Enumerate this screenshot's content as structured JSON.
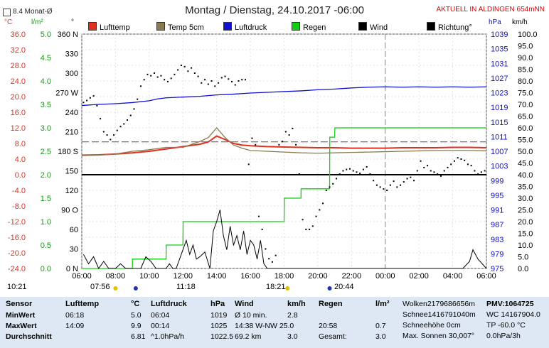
{
  "header": {
    "title": "Montag / Dienstag, 24.10.2017  -06:00",
    "live_label": "AKTUELL IN ALDINGEN 654mNN",
    "average_label": "8.4 Monat-Ø"
  },
  "units": {
    "temp": "°C",
    "rain": "l/m²",
    "dir": "°",
    "pressure": "hPa",
    "wind": "km/h"
  },
  "legend": [
    {
      "label": "Lufttemp",
      "color": "#e03020"
    },
    {
      "label": "Temp 5cm",
      "color": "#8a7a50"
    },
    {
      "label": "Luftdruck",
      "color": "#1010d0"
    },
    {
      "label": "Regen",
      "color": "#10d010"
    },
    {
      "label": "Wind",
      "color": "#000000"
    },
    {
      "label": "Richtung°",
      "color": "#000000"
    }
  ],
  "chart_data": {
    "type": "line",
    "x_ticks": [
      "06:00",
      "08:00",
      "10:00",
      "12:00",
      "14:00",
      "16:00",
      "18:00",
      "20:00",
      "22:00",
      "00:00",
      "02:00",
      "04:00",
      "06:00"
    ],
    "axes": {
      "temp": {
        "range": [
          -24,
          36
        ],
        "ticks": [
          "36.0",
          "32.0",
          "28.0",
          "24.0",
          "20.0",
          "16.0",
          "12.0",
          "8.0",
          "4.0",
          "0.0",
          "-4.0",
          "-8.0",
          "-12.0",
          "-16.0",
          "-20.0",
          "-24.0"
        ]
      },
      "rain": {
        "range": [
          0,
          5
        ],
        "ticks": [
          "5.0",
          "4.5",
          "4.0",
          "3.5",
          "3.0",
          "2.5",
          "2.0",
          "1.5",
          "1.0",
          "0.5",
          "0.0"
        ]
      },
      "direction": {
        "range": [
          0,
          360
        ],
        "ticks": [
          "360 N",
          "330",
          "300",
          "270 W",
          "240",
          "210",
          "180 S",
          "150",
          "120",
          "90 O",
          "60",
          "30",
          "0 N"
        ]
      },
      "pressure": {
        "range": [
          975,
          1039
        ],
        "ticks": [
          "1039",
          "1035",
          "1031",
          "1027",
          "1023",
          "1019",
          "1015",
          "1011",
          "1007",
          "1003",
          "999",
          "995",
          "991",
          "987",
          "983",
          "979",
          "975"
        ]
      },
      "wind": {
        "range": [
          0,
          100
        ],
        "ticks": [
          "100.0",
          "95.0",
          "90.0",
          "85.0",
          "80.0",
          "75.0",
          "70.0",
          "65.0",
          "60.0",
          "55.0",
          "50.0",
          "45.0",
          "40.0",
          "35.0",
          "30.0",
          "25.0",
          "20.0",
          "15.0",
          "10.0",
          "5.0",
          "0.0"
        ]
      }
    },
    "monthly_average": 8.4,
    "series": [
      {
        "name": "Lufttemp",
        "axis": "temp",
        "color": "#e03020",
        "x": [
          0,
          1,
          2,
          3,
          4,
          5,
          6,
          7,
          7.5,
          8,
          8.5,
          9,
          9.5,
          10,
          11,
          12,
          13,
          14,
          15,
          16,
          17,
          18,
          19,
          20,
          21,
          22,
          23,
          24
        ],
        "y": [
          5.0,
          5.1,
          5.3,
          5.6,
          6.0,
          6.6,
          7.2,
          7.8,
          8.4,
          9.9,
          9.0,
          8.0,
          7.6,
          7.4,
          7.2,
          7.1,
          7.0,
          6.9,
          6.9,
          6.8,
          6.8,
          6.8,
          6.9,
          6.9,
          6.9,
          7.0,
          7.0,
          6.9
        ]
      },
      {
        "name": "Temp 5cm",
        "axis": "temp",
        "color": "#8a7a50",
        "x": [
          0,
          1,
          2,
          3,
          4,
          5,
          6,
          7,
          7.5,
          8,
          8.5,
          9,
          9.5,
          10,
          11,
          12,
          13,
          14,
          15,
          16,
          17,
          18,
          19,
          20,
          21,
          22,
          23,
          24
        ],
        "y": [
          4.9,
          5.0,
          5.3,
          6.0,
          6.4,
          7.0,
          7.0,
          8.5,
          9.5,
          12.0,
          9.5,
          7.6,
          6.8,
          6.2,
          6.0,
          5.8,
          5.6,
          5.5,
          5.6,
          5.7,
          5.8,
          5.9,
          6.0,
          6.1,
          6.2,
          6.2,
          6.2,
          6.1
        ]
      },
      {
        "name": "Luftdruck",
        "axis": "pressure",
        "color": "#1010d0",
        "x": [
          0,
          1,
          2,
          3,
          4,
          4.5,
          5,
          6,
          7,
          8,
          9,
          10,
          11,
          12,
          13,
          14,
          15,
          16,
          17,
          18,
          19,
          20,
          21,
          22,
          23,
          24
        ],
        "y": [
          1019.5,
          1019.8,
          1020.0,
          1020.3,
          1020.8,
          1021.3,
          1021.6,
          1021.8,
          1022.0,
          1022.4,
          1022.6,
          1022.9,
          1023.1,
          1023.3,
          1023.5,
          1023.8,
          1024.0,
          1024.3,
          1024.5,
          1024.6,
          1024.5,
          1024.6,
          1024.5,
          1024.6,
          1024.5,
          1024.6
        ]
      },
      {
        "name": "Regen",
        "axis": "rain",
        "color": "#10d010",
        "x": [
          0,
          3,
          3.01,
          5,
          5.01,
          6,
          6.01,
          12,
          12.01,
          13,
          13.01,
          14,
          14.01,
          14.7,
          14.71,
          15,
          15.01,
          24
        ],
        "y": [
          0,
          0,
          0.2,
          0.2,
          0.5,
          0.5,
          1.0,
          1.0,
          1.5,
          1.5,
          1.7,
          1.7,
          1.7,
          1.7,
          2.8,
          2.8,
          3.0,
          3.0
        ]
      },
      {
        "name": "Wind",
        "axis": "wind",
        "color": "#000000",
        "style": "bars",
        "x": [
          0.1,
          0.4,
          0.7,
          1.0,
          1.3,
          1.6,
          2.0,
          2.3,
          2.6,
          2.9,
          3.2,
          3.5,
          3.8,
          4.1,
          4.4,
          4.7,
          5.0,
          5.2,
          5.4,
          5.6,
          5.8,
          6.0,
          6.2,
          6.4,
          6.6,
          6.8,
          7.0,
          7.3,
          7.6,
          7.8,
          8.0,
          8.2,
          8.4,
          8.6,
          8.8,
          9.0,
          9.2,
          9.4,
          9.6,
          9.8,
          10.0,
          10.2,
          10.4,
          10.6,
          10.8,
          11.0,
          11.5,
          12.0,
          14.0,
          16.0,
          18.0,
          20.0,
          22.0,
          22.6,
          23.0,
          23.2,
          23.5,
          24.0
        ],
        "y": [
          6,
          2,
          5,
          0,
          3,
          0,
          0,
          2,
          0,
          0,
          0,
          0,
          5,
          3,
          0,
          0,
          0,
          2,
          0,
          0,
          4,
          8,
          12,
          6,
          10,
          4,
          5,
          7,
          0,
          16,
          20,
          25,
          14,
          8,
          18,
          10,
          14,
          8,
          16,
          6,
          12,
          10,
          4,
          12,
          2,
          0,
          0,
          0,
          0,
          0,
          0,
          0,
          0,
          0,
          3,
          8,
          4,
          0
        ]
      },
      {
        "name": "Richtung°",
        "axis": "direction",
        "color": "#000000",
        "style": "dots",
        "x": [
          0.1,
          0.3,
          0.5,
          0.7,
          0.9,
          1.1,
          1.3,
          1.5,
          1.7,
          1.9,
          2.1,
          2.3,
          2.5,
          2.7,
          2.9,
          3.1,
          3.3,
          3.5,
          3.7,
          3.9,
          4.1,
          4.3,
          4.5,
          4.7,
          4.9,
          5.1,
          5.3,
          5.5,
          5.7,
          5.9,
          6.1,
          6.3,
          6.5,
          6.7,
          6.9,
          7.1,
          7.3,
          7.5,
          7.7,
          7.9,
          8.1,
          8.3,
          8.5,
          8.7,
          8.9,
          9.1,
          9.3,
          9.5,
          9.7,
          9.9,
          10.1,
          10.3,
          10.5,
          10.7,
          10.9,
          11.1,
          11.3,
          11.5,
          11.7,
          11.9,
          12.1,
          12.3,
          12.5,
          12.7,
          12.9,
          13.1,
          13.3,
          13.5,
          13.7,
          13.9,
          14.1,
          14.3,
          14.5,
          14.7,
          14.9,
          15.1,
          15.3,
          15.5,
          15.7,
          15.9,
          16.1,
          16.3,
          16.5,
          16.7,
          16.9,
          17.1,
          17.3,
          17.5,
          17.7,
          17.9,
          18.1,
          18.3,
          18.5,
          18.7,
          18.9,
          19.1,
          19.3,
          19.5,
          19.7,
          19.9,
          20.1,
          20.3,
          20.5,
          20.7,
          20.9,
          21.1,
          21.3,
          21.5,
          21.7,
          21.9,
          22.1,
          22.3,
          22.5,
          22.7,
          22.9,
          23.1,
          23.3,
          23.5,
          23.7,
          23.9
        ],
        "y": [
          255,
          258,
          262,
          265,
          250,
          230,
          210,
          205,
          198,
          205,
          212,
          218,
          222,
          228,
          235,
          245,
          260,
          280,
          290,
          298,
          296,
          300,
          294,
          296,
          290,
          287,
          292,
          298,
          305,
          312,
          310,
          303,
          308,
          300,
          295,
          285,
          290,
          283,
          288,
          280,
          285,
          293,
          295,
          291,
          287,
          282,
          288,
          290,
          290,
          160,
          200,
          190,
          80,
          60,
          30,
          15,
          10,
          20,
          190,
          195,
          210,
          205,
          215,
          190,
          145,
          75,
          60,
          60,
          65,
          80,
          90,
          100,
          120,
          125,
          130,
          138,
          145,
          150,
          152,
          153,
          150,
          148,
          146,
          152,
          156,
          145,
          135,
          128,
          125,
          122,
          120,
          128,
          134,
          125,
          128,
          133,
          138,
          140,
          135,
          150,
          165,
          155,
          158,
          150,
          148,
          145,
          142,
          150,
          155,
          160,
          165,
          170,
          168,
          166,
          160,
          158,
          150,
          145,
          148,
          150
        ]
      }
    ]
  },
  "x_annotations": [
    {
      "label": "10:21",
      "color": "#e0c000"
    },
    {
      "label": "07:56",
      "color": "#e0c000"
    },
    {
      "label": "11:18",
      "color": "#2030b0"
    },
    {
      "label": "18:21",
      "color": "#e0c000"
    },
    {
      "label": "20:44",
      "color": "#2030b0"
    }
  ],
  "table": {
    "col_headers": [
      "Sensor",
      "Lufttemp",
      "°C",
      "Luftdruck",
      "hPa",
      "Wind",
      "km/h",
      "Regen",
      "l/m²"
    ],
    "rows": [
      {
        "label": "MinWert",
        "c1": "06:18",
        "c2": "5.0",
        "c3": "06:04",
        "c4": "1019",
        "c5": "Ø 10 min.",
        "c6": "2.8",
        "c7": "",
        "c8": ""
      },
      {
        "label": "MaxWert",
        "c1": "14:09",
        "c2": "9.9",
        "c3": "00:14",
        "c4": "1025",
        "c5": "14:38   W-NW 25.0",
        "c6": "",
        "c7": "20:58",
        "c8": "0.7"
      },
      {
        "label": "Durchschnitt",
        "c1": "",
        "c2": "6.81",
        "c3": "^1.0hPa/h",
        "c4": "1022.5",
        "c5": "69.2 km",
        "c6": "3.0",
        "c7": "Gesamt:",
        "c8": "3.0"
      }
    ],
    "right_col1": [
      "Wolken2179686656m",
      "Schnee1416791040m",
      "Schneehöhe      0cm",
      "Max. Sonnen 30,007°"
    ],
    "right_col2": [
      "PMV:1064725",
      "WC 14167904.0",
      "TP -60.0 °C",
      "0.0hPa/3h"
    ]
  }
}
